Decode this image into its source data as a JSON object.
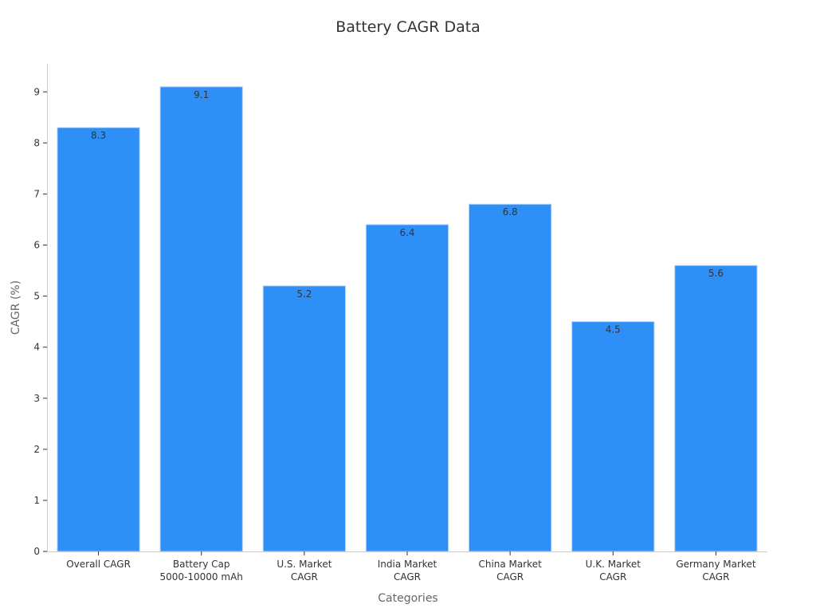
{
  "chart_data": {
    "type": "bar",
    "title": "Battery CAGR Data",
    "xlabel": "Categories",
    "ylabel": "CAGR (%)",
    "categories": [
      [
        "Overall CAGR"
      ],
      [
        "Battery Cap",
        "5000-10000 mAh"
      ],
      [
        "U.S. Market",
        "CAGR"
      ],
      [
        "India Market",
        "CAGR"
      ],
      [
        "China Market",
        "CAGR"
      ],
      [
        "U.K. Market",
        "CAGR"
      ],
      [
        "Germany Market",
        "CAGR"
      ]
    ],
    "values": [
      8.3,
      9.1,
      5.2,
      6.4,
      6.8,
      4.5,
      5.6
    ],
    "value_labels": [
      "8.3",
      "9.1",
      "5.2",
      "6.4",
      "6.8",
      "4.5",
      "5.6"
    ],
    "ylim": [
      0,
      9.55
    ],
    "yticks": [
      0,
      1,
      2,
      3,
      4,
      5,
      6,
      7,
      8,
      9
    ],
    "grid": false,
    "bar_color": "#2e90f7",
    "bar_edge_color": "#b8d6f7",
    "axis_color": "#cccccc"
  }
}
